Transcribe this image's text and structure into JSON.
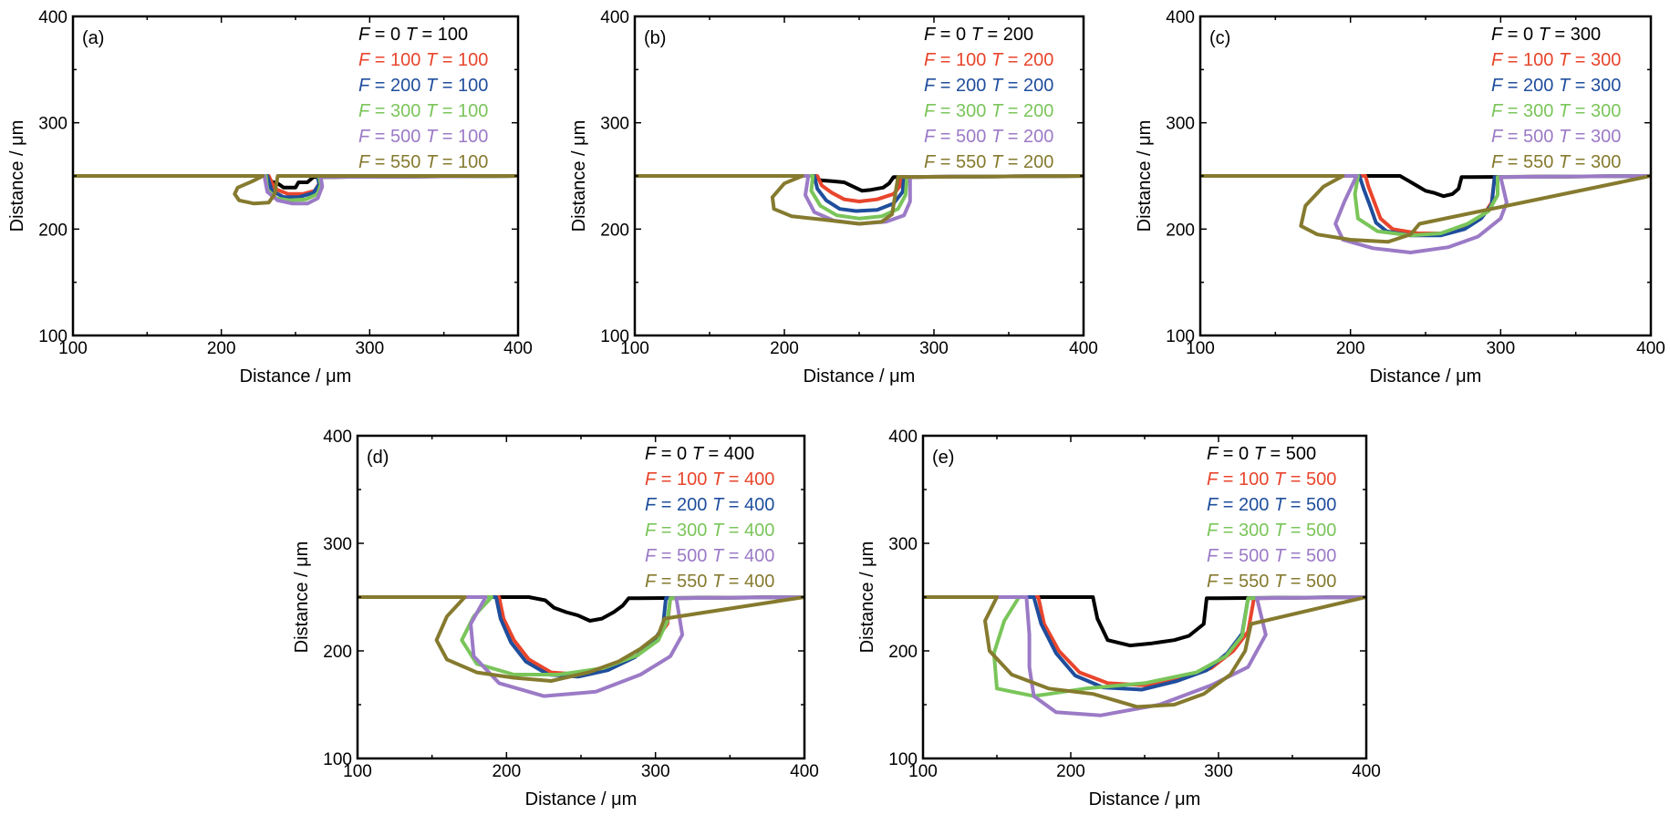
{
  "colors": {
    "F0": "#000000",
    "F100": "#e8452c",
    "F200": "#1f4e9c",
    "F300": "#7ac55a",
    "F500": "#9b7ac6",
    "F550": "#857a2e"
  },
  "chart_data": [
    {
      "type": "line",
      "panel": "(a)",
      "xlabel": "Distance / μm",
      "ylabel": "Distance / μm",
      "xlim": [
        100,
        400
      ],
      "ylim": [
        100,
        400
      ],
      "xticks": [
        100,
        200,
        300,
        400
      ],
      "yticks": [
        100,
        200,
        300,
        400
      ],
      "legend_position": "top-right",
      "series": [
        {
          "name": "F = 0 T = 100",
          "color_key": "F0",
          "x": [
            100,
            230,
            233,
            238,
            242,
            250,
            252,
            258,
            262,
            268,
            400
          ],
          "y": [
            250,
            250,
            245,
            243,
            239,
            239,
            244,
            244,
            249,
            249,
            250
          ]
        },
        {
          "name": "F = 100 T = 100",
          "color_key": "F100",
          "x": [
            100,
            232,
            236,
            245,
            255,
            263,
            266,
            265,
            400
          ],
          "y": [
            250,
            250,
            238,
            233,
            233,
            236,
            243,
            249,
            250
          ]
        },
        {
          "name": "F = 200 T = 100",
          "color_key": "F200",
          "x": [
            100,
            231,
            234,
            242,
            252,
            262,
            266,
            265,
            400
          ],
          "y": [
            250,
            250,
            236,
            230,
            230,
            234,
            242,
            249,
            250
          ]
        },
        {
          "name": "F = 300 T = 100",
          "color_key": "F300",
          "x": [
            100,
            230,
            231,
            237,
            246,
            257,
            265,
            267,
            266,
            400
          ],
          "y": [
            250,
            250,
            237,
            229,
            227,
            228,
            233,
            242,
            249,
            250
          ]
        },
        {
          "name": "F = 500 T = 100",
          "color_key": "F500",
          "x": [
            100,
            229,
            231,
            238,
            248,
            258,
            265,
            268,
            267,
            400
          ],
          "y": [
            250,
            250,
            235,
            227,
            224,
            224,
            229,
            240,
            249,
            250
          ]
        },
        {
          "name": "F = 550 T = 100",
          "color_key": "F550",
          "x": [
            100,
            228,
            221,
            211,
            209,
            212,
            222,
            232,
            236,
            238,
            400
          ],
          "y": [
            250,
            250,
            245,
            239,
            233,
            227,
            224,
            225,
            233,
            250,
            250
          ]
        }
      ]
    },
    {
      "type": "line",
      "panel": "(b)",
      "xlabel": "Distance / μm",
      "ylabel": "Distance / μm",
      "xlim": [
        100,
        400
      ],
      "ylim": [
        100,
        400
      ],
      "xticks": [
        100,
        200,
        300,
        400
      ],
      "yticks": [
        100,
        200,
        300,
        400
      ],
      "legend_position": "top-right",
      "series": [
        {
          "name": "F = 0 T = 200",
          "color_key": "F0",
          "x": [
            100,
            220,
            224,
            232,
            240,
            246,
            252,
            258,
            266,
            270,
            273,
            280,
            400
          ],
          "y": [
            250,
            250,
            246,
            245,
            244,
            240,
            236,
            237,
            239,
            243,
            249,
            249,
            250
          ]
        },
        {
          "name": "F = 100 T = 200",
          "color_key": "F100",
          "x": [
            100,
            222,
            225,
            232,
            240,
            250,
            262,
            273,
            277,
            278,
            400
          ],
          "y": [
            250,
            250,
            241,
            234,
            228,
            226,
            228,
            233,
            240,
            249,
            250
          ]
        },
        {
          "name": "F = 200 T = 200",
          "color_key": "F200",
          "x": [
            100,
            220,
            222,
            228,
            237,
            248,
            262,
            273,
            279,
            280,
            400
          ],
          "y": [
            250,
            250,
            238,
            227,
            219,
            217,
            218,
            224,
            235,
            249,
            250
          ]
        },
        {
          "name": "F = 300 T = 200",
          "color_key": "F300",
          "x": [
            100,
            219,
            218,
            224,
            235,
            250,
            265,
            276,
            281,
            282,
            400
          ],
          "y": [
            250,
            250,
            236,
            222,
            213,
            210,
            212,
            219,
            232,
            249,
            250
          ]
        },
        {
          "name": "F = 500 T = 200",
          "color_key": "F500",
          "x": [
            100,
            216,
            214,
            220,
            233,
            250,
            268,
            280,
            284,
            284,
            400
          ],
          "y": [
            250,
            250,
            232,
            216,
            208,
            205,
            207,
            213,
            226,
            249,
            250
          ]
        },
        {
          "name": "F = 550 T = 200",
          "color_key": "F550",
          "x": [
            100,
            212,
            200,
            192,
            193,
            205,
            225,
            250,
            265,
            272,
            276,
            400
          ],
          "y": [
            250,
            250,
            243,
            230,
            219,
            212,
            209,
            205,
            207,
            214,
            249,
            250
          ]
        }
      ]
    },
    {
      "type": "line",
      "panel": "(c)",
      "xlabel": "Distance / μm",
      "ylabel": "Distance / μm",
      "xlim": [
        100,
        400
      ],
      "ylim": [
        100,
        400
      ],
      "xticks": [
        100,
        200,
        300,
        400
      ],
      "yticks": [
        100,
        200,
        300,
        400
      ],
      "legend_position": "top-right",
      "series": [
        {
          "name": "F = 0 T = 300",
          "color_key": "F0",
          "x": [
            100,
            233,
            238,
            244,
            250,
            256,
            262,
            268,
            272,
            274,
            280,
            400
          ],
          "y": [
            250,
            250,
            246,
            241,
            236,
            234,
            231,
            233,
            238,
            249,
            249,
            250
          ]
        },
        {
          "name": "F = 100 T = 300",
          "color_key": "F100",
          "x": [
            100,
            210,
            212,
            216,
            220,
            228,
            245,
            262,
            278,
            288,
            294,
            296,
            400
          ],
          "y": [
            250,
            250,
            240,
            225,
            210,
            200,
            196,
            196,
            202,
            212,
            225,
            249,
            250
          ]
        },
        {
          "name": "F = 200 T = 300",
          "color_key": "F200",
          "x": [
            100,
            206,
            209,
            213,
            217,
            224,
            240,
            260,
            276,
            287,
            294,
            296,
            400
          ],
          "y": [
            250,
            250,
            237,
            222,
            206,
            198,
            194,
            194,
            200,
            210,
            223,
            249,
            250
          ]
        },
        {
          "name": "F = 300 T = 300",
          "color_key": "F300",
          "x": [
            100,
            205,
            203,
            205,
            218,
            240,
            260,
            278,
            292,
            298,
            298,
            400
          ],
          "y": [
            250,
            250,
            233,
            210,
            198,
            194,
            196,
            205,
            217,
            232,
            249,
            250
          ]
        },
        {
          "name": "F = 500 T = 300",
          "color_key": "F500",
          "x": [
            100,
            204,
            196,
            190,
            195,
            215,
            240,
            265,
            285,
            300,
            304,
            300,
            400
          ],
          "y": [
            250,
            250,
            226,
            205,
            190,
            182,
            178,
            183,
            193,
            210,
            225,
            249,
            250
          ]
        },
        {
          "name": "F = 550 T = 300",
          "color_key": "F550",
          "x": [
            100,
            195,
            182,
            170,
            167,
            178,
            200,
            225,
            240,
            246,
            400
          ],
          "y": [
            250,
            250,
            240,
            222,
            203,
            195,
            190,
            188,
            195,
            205,
            250
          ]
        }
      ]
    },
    {
      "type": "line",
      "panel": "(d)",
      "xlabel": "Distance / μm",
      "ylabel": "Distance / μm",
      "xlim": [
        100,
        400
      ],
      "ylim": [
        100,
        400
      ],
      "xticks": [
        100,
        200,
        300,
        400
      ],
      "yticks": [
        100,
        200,
        300,
        400
      ],
      "legend_position": "top-right",
      "series": [
        {
          "name": "F = 0 T = 400",
          "color_key": "F0",
          "x": [
            100,
            195,
            205,
            215,
            226,
            232,
            240,
            248,
            256,
            264,
            272,
            278,
            282,
            288,
            400
          ],
          "y": [
            250,
            250,
            250,
            250,
            247,
            240,
            236,
            233,
            228,
            230,
            236,
            242,
            249,
            249,
            250
          ]
        },
        {
          "name": "F = 100 T = 400",
          "color_key": "F100",
          "x": [
            100,
            195,
            198,
            205,
            215,
            230,
            250,
            270,
            288,
            300,
            308,
            310,
            400
          ],
          "y": [
            250,
            250,
            230,
            210,
            192,
            180,
            178,
            184,
            196,
            210,
            225,
            249,
            250
          ]
        },
        {
          "name": "F = 200 T = 400",
          "color_key": "F200",
          "x": [
            100,
            193,
            196,
            203,
            213,
            228,
            248,
            268,
            286,
            298,
            305,
            307,
            400
          ],
          "y": [
            250,
            250,
            230,
            208,
            190,
            178,
            176,
            182,
            194,
            208,
            222,
            249,
            250
          ]
        },
        {
          "name": "F = 300 T = 400",
          "color_key": "F300",
          "x": [
            100,
            190,
            178,
            170,
            180,
            205,
            235,
            265,
            288,
            302,
            308,
            310,
            400
          ],
          "y": [
            250,
            250,
            232,
            210,
            188,
            178,
            178,
            184,
            196,
            210,
            228,
            249,
            250
          ]
        },
        {
          "name": "F = 500 T = 400",
          "color_key": "F500",
          "x": [
            100,
            186,
            176,
            178,
            195,
            225,
            260,
            290,
            310,
            318,
            314,
            400
          ],
          "y": [
            250,
            250,
            225,
            195,
            170,
            158,
            162,
            178,
            195,
            215,
            249,
            250
          ]
        },
        {
          "name": "F = 550 T = 400",
          "color_key": "F550",
          "x": [
            100,
            172,
            160,
            153,
            160,
            180,
            205,
            230,
            255,
            275,
            290,
            302,
            306,
            400
          ],
          "y": [
            250,
            250,
            232,
            210,
            192,
            180,
            175,
            172,
            180,
            190,
            202,
            215,
            230,
            250
          ]
        }
      ]
    },
    {
      "type": "line",
      "panel": "(e)",
      "xlabel": "Distance / μm",
      "ylabel": "Distance / μm",
      "xlim": [
        100,
        400
      ],
      "ylim": [
        100,
        400
      ],
      "xticks": [
        100,
        200,
        300,
        400
      ],
      "yticks": [
        100,
        200,
        300,
        400
      ],
      "legend_position": "top-right",
      "series": [
        {
          "name": "F = 0 T = 500",
          "color_key": "F0",
          "x": [
            100,
            190,
            205,
            215,
            218,
            225,
            240,
            255,
            270,
            280,
            290,
            292,
            300,
            400
          ],
          "y": [
            250,
            250,
            250,
            250,
            230,
            210,
            205,
            207,
            210,
            214,
            225,
            249,
            249,
            250
          ]
        },
        {
          "name": "F = 100 T = 500",
          "color_key": "F100",
          "x": [
            100,
            178,
            182,
            192,
            206,
            225,
            250,
            275,
            295,
            310,
            320,
            324,
            400
          ],
          "y": [
            250,
            250,
            225,
            200,
            180,
            170,
            168,
            174,
            184,
            200,
            218,
            249,
            250
          ]
        },
        {
          "name": "F = 200 T = 500",
          "color_key": "F200",
          "x": [
            100,
            175,
            180,
            190,
            203,
            222,
            248,
            272,
            292,
            306,
            316,
            320,
            400
          ],
          "y": [
            250,
            250,
            225,
            198,
            177,
            166,
            164,
            172,
            182,
            198,
            216,
            249,
            250
          ]
        },
        {
          "name": "F = 300 T = 500",
          "color_key": "F300",
          "x": [
            100,
            165,
            155,
            148,
            150,
            175,
            210,
            250,
            285,
            305,
            316,
            320,
            400
          ],
          "y": [
            250,
            250,
            228,
            198,
            165,
            158,
            165,
            170,
            180,
            195,
            214,
            249,
            250
          ]
        },
        {
          "name": "F = 500 T = 500",
          "color_key": "F500",
          "x": [
            100,
            170,
            172,
            172,
            175,
            190,
            220,
            260,
            295,
            320,
            332,
            326,
            400
          ],
          "y": [
            250,
            250,
            215,
            185,
            158,
            143,
            140,
            150,
            168,
            185,
            215,
            249,
            250
          ]
        },
        {
          "name": "F = 550 T = 500",
          "color_key": "F550",
          "x": [
            100,
            150,
            142,
            145,
            160,
            185,
            215,
            245,
            270,
            290,
            308,
            318,
            322,
            400
          ],
          "y": [
            250,
            250,
            228,
            200,
            178,
            165,
            160,
            148,
            150,
            160,
            178,
            200,
            225,
            250
          ]
        }
      ]
    }
  ]
}
